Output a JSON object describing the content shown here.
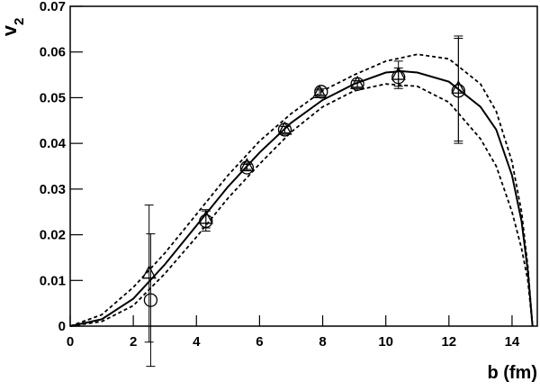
{
  "chart_data": {
    "type": "scatter",
    "x_label": "b (fm)",
    "y_label": {
      "main": "v",
      "sub": "2"
    },
    "xlim": [
      0,
      14.8
    ],
    "ylim": [
      0,
      0.07
    ],
    "xticks": [
      0,
      2,
      4,
      6,
      8,
      10,
      12,
      14
    ],
    "yticks": [
      0,
      0.01,
      0.02,
      0.03,
      0.04,
      0.05,
      0.06,
      0.07
    ],
    "series": [
      {
        "kind": "triangle",
        "color": "#000000",
        "x": [
          2.5,
          4.3,
          5.6,
          6.8,
          7.9,
          9.1,
          10.4,
          12.3
        ],
        "values": [
          0.0115,
          0.0235,
          0.035,
          0.043,
          0.051,
          0.053,
          0.055,
          0.052
        ],
        "errors": [
          0.015,
          0.002,
          0.0007,
          0.0007,
          0.0007,
          0.0007,
          0.003,
          0.0115
        ]
      },
      {
        "kind": "circle",
        "color": "#000000",
        "x": [
          2.55,
          4.3,
          5.6,
          6.8,
          7.95,
          9.1,
          10.4,
          12.3
        ],
        "values": [
          0.0057,
          0.023,
          0.0347,
          0.043,
          0.0513,
          0.053,
          0.0545,
          0.0515
        ],
        "errors": [
          0.0145,
          0.0022,
          0.0007,
          0.0007,
          0.0007,
          0.0007,
          0.002,
          0.0115
        ]
      },
      {
        "kind": "solid",
        "color": "#000000",
        "x": [
          0,
          1,
          2,
          3,
          4,
          5,
          6,
          7,
          8,
          9,
          10,
          10.5,
          11,
          12,
          13,
          13.5,
          14,
          14.3,
          14.5,
          14.65
        ],
        "values": [
          0,
          0.0015,
          0.006,
          0.0135,
          0.022,
          0.0305,
          0.038,
          0.0445,
          0.0495,
          0.053,
          0.0555,
          0.0558,
          0.0555,
          0.0535,
          0.048,
          0.043,
          0.033,
          0.023,
          0.012,
          0
        ]
      },
      {
        "kind": "dashed",
        "color": "#000000",
        "x": [
          0,
          1,
          2,
          3,
          4,
          5,
          6,
          7,
          8,
          9,
          10,
          11,
          12,
          13,
          13.5,
          14,
          14.3,
          14.5,
          14.65
        ],
        "values": [
          0,
          0.0025,
          0.0085,
          0.016,
          0.0245,
          0.033,
          0.0405,
          0.0465,
          0.0515,
          0.055,
          0.058,
          0.0595,
          0.0585,
          0.053,
          0.047,
          0.036,
          0.025,
          0.013,
          0
        ]
      },
      {
        "kind": "dashed",
        "color": "#000000",
        "x": [
          0,
          1,
          2,
          3,
          4,
          5,
          6,
          7,
          8,
          9,
          10,
          11,
          12,
          13,
          13.5,
          14,
          14.3,
          14.5,
          14.65
        ],
        "values": [
          0,
          0.001,
          0.0045,
          0.0115,
          0.0195,
          0.028,
          0.0355,
          0.0425,
          0.048,
          0.0515,
          0.053,
          0.0525,
          0.049,
          0.041,
          0.035,
          0.025,
          0.017,
          0.01,
          0
        ]
      }
    ]
  }
}
